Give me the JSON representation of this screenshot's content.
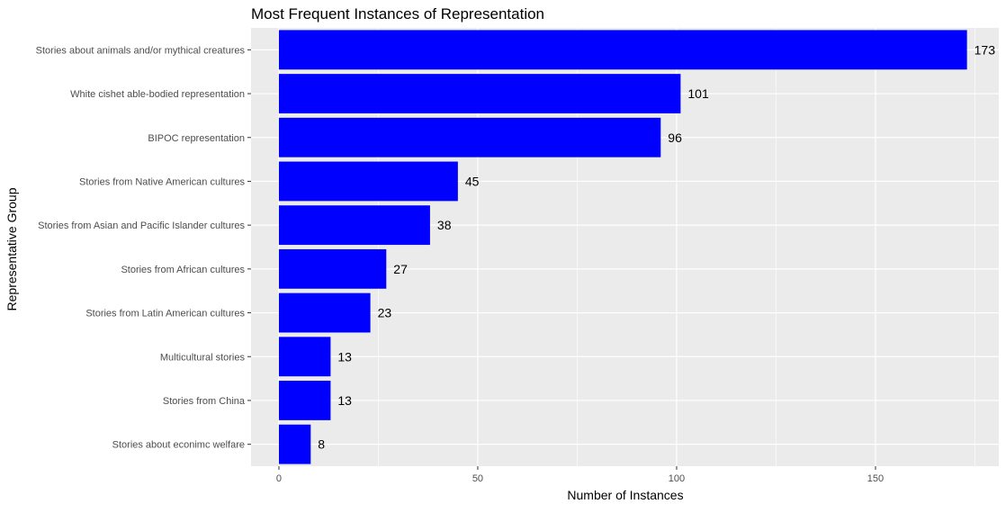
{
  "chart_data": {
    "type": "bar",
    "orientation": "horizontal",
    "title": "Most Frequent Instances of Representation",
    "xlabel": "Number of Instances",
    "ylabel": "Representative Group",
    "categories": [
      "Stories about animals and/or mythical creatures",
      "White cishet able-bodied representation",
      "BIPOC representation",
      "Stories from Native American cultures",
      "Stories from Asian and Pacific Islander cultures",
      "Stories from African cultures",
      "Stories from Latin American cultures",
      "Multicultural stories",
      "Stories from China",
      "Stories about econimc welfare"
    ],
    "values": [
      173,
      101,
      96,
      45,
      38,
      27,
      23,
      13,
      13,
      8
    ],
    "xlim": [
      -7,
      181
    ],
    "xticks": [
      0,
      50,
      100,
      150
    ],
    "xtick_labels": [
      "0",
      "50",
      "100",
      "150"
    ],
    "grid": true,
    "legend": "none",
    "bar_color": "#0000FF",
    "panel_color": "#EBEBEB",
    "grid_color": "#FFFFFF"
  }
}
